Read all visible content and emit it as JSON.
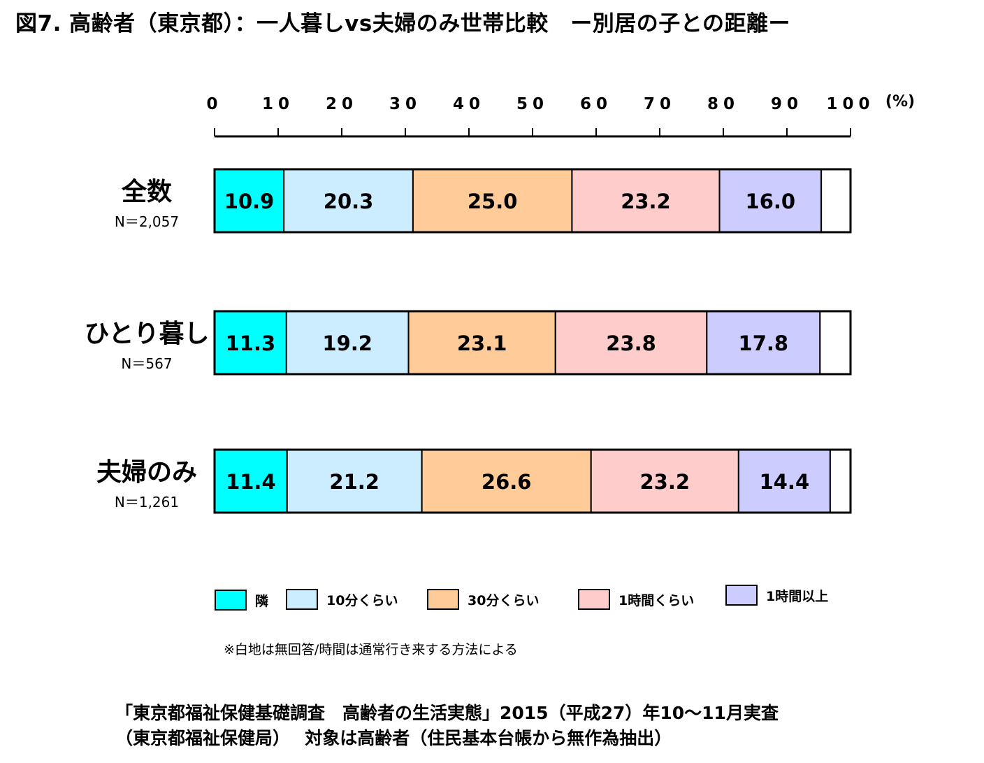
{
  "title": "図7. 高齢者（東京都）：一人暮しvs夫婦のみ世帯比較　ー別居の子との距離ー",
  "note": "※白地は無回答/時間は通常行き来する方法による",
  "source": {
    "line1": "「東京都福祉保健基礎調査　高齢者の生活実態」2015（平成27）年10～11月実査",
    "line2": "（東京都福祉保健局）　 対象は高齢者（住民基本台帳から無作為抽出）"
  },
  "chart_data": {
    "type": "bar",
    "orientation": "horizontal",
    "stacked": true,
    "xlim": [
      0,
      100
    ],
    "x_ticks": [
      "0",
      "10",
      "20",
      "30",
      "40",
      "50",
      "60",
      "70",
      "80",
      "90",
      "100"
    ],
    "x_unit": "(%)",
    "categories": [
      {
        "label": "全数",
        "n": "N＝2,057"
      },
      {
        "label": "ひとり暮し",
        "n": "N＝567"
      },
      {
        "label": "夫婦のみ",
        "n": "N＝1,261"
      }
    ],
    "series": [
      {
        "name": "隣",
        "color": "#00FFFF",
        "values": [
          10.9,
          11.3,
          11.4
        ]
      },
      {
        "name": "10分くらい",
        "color": "#CCECFF",
        "values": [
          20.3,
          19.2,
          21.2
        ]
      },
      {
        "name": "30分くらい",
        "color": "#FFCC99",
        "values": [
          25.0,
          23.1,
          26.6
        ]
      },
      {
        "name": "1時間くらい",
        "color": "#FFCCCC",
        "values": [
          23.2,
          23.8,
          23.2
        ]
      },
      {
        "name": "1時間以上",
        "color": "#CCCCFF",
        "values": [
          16.0,
          17.8,
          14.4
        ]
      }
    ],
    "value_labels": [
      [
        "10.9",
        "20.3",
        "25.0",
        "23.2",
        "16.0"
      ],
      [
        "11.3",
        "19.2",
        "23.1",
        "23.8",
        "17.8"
      ],
      [
        "11.4",
        "21.2",
        "26.6",
        "23.2",
        "14.4"
      ]
    ],
    "remainder_color": "#FFFFFF",
    "legend_position": "bottom"
  }
}
